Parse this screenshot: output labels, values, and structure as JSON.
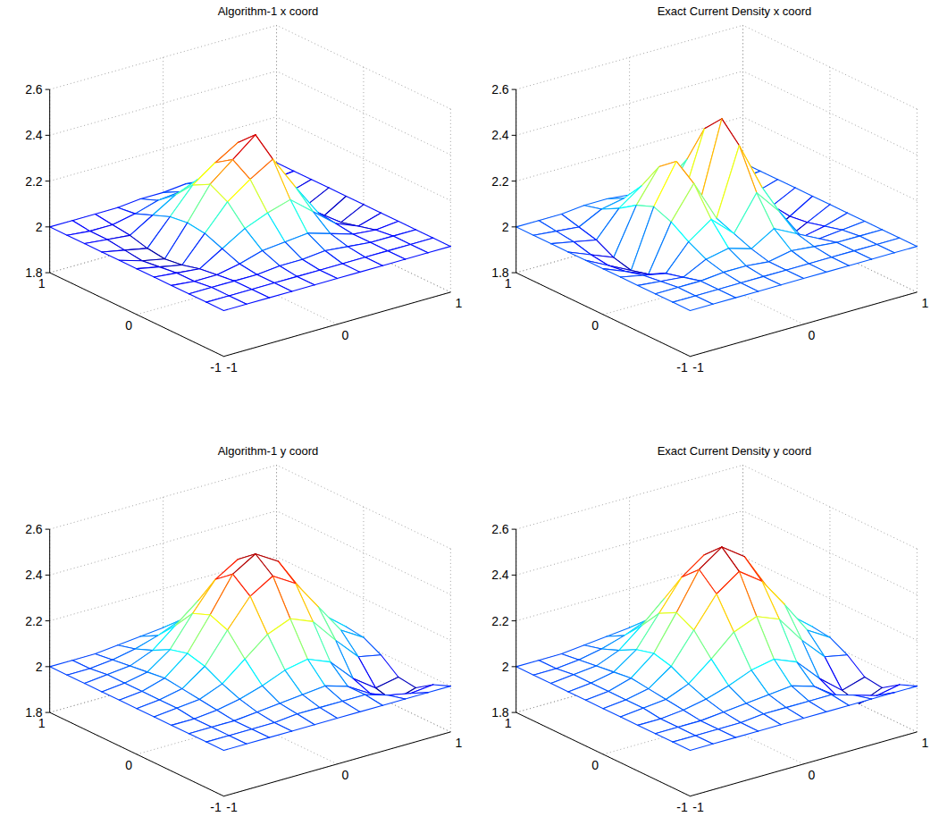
{
  "chart_data": [
    {
      "type": "surface",
      "title": "Algorithm-1 x coord",
      "x": [
        -1,
        -0.8,
        -0.6,
        -0.4,
        -0.2,
        0,
        0.2,
        0.4,
        0.6,
        0.8,
        1
      ],
      "y": [
        -1,
        -0.8,
        -0.6,
        -0.4,
        -0.2,
        0,
        0.2,
        0.4,
        0.6,
        0.8,
        1
      ],
      "z": [
        [
          2,
          2,
          2,
          2,
          2,
          2,
          2,
          2,
          2,
          2,
          2
        ],
        [
          2,
          2,
          2,
          2,
          2,
          2,
          2,
          2,
          2,
          2,
          2
        ],
        [
          2,
          2,
          2,
          2,
          2.01,
          2.01,
          2.02,
          2.01,
          2,
          2,
          2
        ],
        [
          2,
          1.99,
          1.99,
          2.01,
          2.04,
          2.05,
          2.06,
          2.03,
          2,
          1.99,
          2
        ],
        [
          2,
          1.99,
          1.98,
          2.04,
          2.1,
          2.14,
          2.17,
          2.09,
          2.01,
          1.97,
          2
        ],
        [
          2,
          1.98,
          1.96,
          2.07,
          2.18,
          2.25,
          2.31,
          2.16,
          2.02,
          1.95,
          2
        ],
        [
          2,
          1.97,
          1.95,
          2.08,
          2.22,
          2.3,
          2.38,
          2.2,
          2.02,
          1.94,
          2
        ],
        [
          2,
          1.98,
          1.96,
          2.07,
          2.18,
          2.25,
          2.31,
          2.16,
          2.02,
          1.95,
          2
        ],
        [
          2,
          1.99,
          1.98,
          2.04,
          2.1,
          2.14,
          2.17,
          2.09,
          2.01,
          1.97,
          2
        ],
        [
          2,
          1.99,
          1.99,
          2.01,
          2.04,
          2.05,
          2.06,
          2.03,
          2,
          1.99,
          2
        ],
        [
          2,
          2,
          2,
          2,
          2.01,
          2.01,
          2.02,
          2.01,
          2,
          2,
          2
        ]
      ],
      "xlim": [
        -1,
        1
      ],
      "ylim": [
        -1,
        1
      ],
      "zlim": [
        1.8,
        2.6
      ],
      "xticks": [
        -1,
        0,
        1
      ],
      "yticks": [
        -1,
        0,
        1
      ],
      "zticks": [
        1.8,
        2,
        2.2,
        2.4,
        2.6
      ],
      "grid": true
    },
    {
      "type": "surface",
      "title": "Exact Current Density x coord",
      "x": [
        -1,
        -0.8,
        -0.6,
        -0.4,
        -0.2,
        0,
        0.2,
        0.4,
        0.6,
        0.8,
        1
      ],
      "y": [
        -1,
        -0.8,
        -0.6,
        -0.4,
        -0.2,
        0,
        0.2,
        0.4,
        0.6,
        0.8,
        1
      ],
      "z": [
        [
          2,
          2,
          2,
          2,
          2,
          2,
          2,
          2,
          2,
          2,
          2
        ],
        [
          2,
          2,
          2,
          2,
          2,
          2,
          2,
          2,
          2,
          2,
          2
        ],
        [
          2,
          2,
          2,
          2.01,
          2.01,
          2,
          2.02,
          2.01,
          2,
          2,
          2
        ],
        [
          2,
          1.99,
          1.98,
          2.03,
          2.05,
          2.02,
          2.08,
          2.03,
          1.98,
          1.99,
          2
        ],
        [
          2,
          1.98,
          1.96,
          2.07,
          2.14,
          2.05,
          2.2,
          2.09,
          1.95,
          1.97,
          2
        ],
        [
          2,
          1.96,
          1.92,
          2.12,
          2.26,
          2.08,
          2.37,
          2.16,
          1.9,
          1.95,
          2
        ],
        [
          2,
          1.95,
          1.9,
          2.15,
          2.32,
          2.1,
          2.45,
          2.2,
          1.88,
          1.94,
          2
        ],
        [
          2,
          1.96,
          1.92,
          2.12,
          2.26,
          2.08,
          2.37,
          2.16,
          1.9,
          1.95,
          2
        ],
        [
          2,
          1.98,
          1.96,
          2.07,
          2.14,
          2.05,
          2.2,
          2.09,
          1.95,
          1.97,
          2
        ],
        [
          2,
          1.99,
          1.98,
          2.03,
          2.05,
          2.02,
          2.08,
          2.03,
          1.98,
          1.99,
          2
        ],
        [
          2,
          2,
          2,
          2.01,
          2.01,
          2,
          2.02,
          2.01,
          2,
          2,
          2
        ]
      ],
      "xlim": [
        -1,
        1
      ],
      "ylim": [
        -1,
        1
      ],
      "zlim": [
        1.8,
        2.6
      ],
      "xticks": [
        -1,
        0,
        1
      ],
      "yticks": [
        -1,
        0,
        1
      ],
      "zticks": [
        1.8,
        2,
        2.2,
        2.4,
        2.6
      ],
      "grid": true
    },
    {
      "type": "surface",
      "title": "Algorithm-1 y coord",
      "x": [
        -1,
        -0.8,
        -0.6,
        -0.4,
        -0.2,
        0,
        0.2,
        0.4,
        0.6,
        0.8,
        1
      ],
      "y": [
        -1,
        -0.8,
        -0.6,
        -0.4,
        -0.2,
        0,
        0.2,
        0.4,
        0.6,
        0.8,
        1
      ],
      "z": [
        [
          2,
          2,
          2,
          2,
          2,
          2,
          2,
          2,
          2,
          2,
          2
        ],
        [
          2,
          2,
          2,
          2,
          2.01,
          2.01,
          2.01,
          2.01,
          1.98,
          1.96,
          1.97
        ],
        [
          2,
          2,
          2,
          2.01,
          2.02,
          2.03,
          2.04,
          2.01,
          1.95,
          1.89,
          1.92
        ],
        [
          2,
          2,
          2.01,
          2.03,
          2.06,
          2.1,
          2.12,
          2.08,
          1.98,
          1.91,
          1.93
        ],
        [
          2,
          2.01,
          2.02,
          2.06,
          2.14,
          2.22,
          2.26,
          2.22,
          2.11,
          2.01,
          1.99
        ],
        [
          2,
          2.01,
          2.03,
          2.1,
          2.23,
          2.35,
          2.41,
          2.35,
          2.22,
          2.09,
          2.03
        ],
        [
          2,
          2.01,
          2.04,
          2.12,
          2.26,
          2.41,
          2.47,
          2.41,
          2.26,
          2.12,
          2.04
        ],
        [
          2,
          2.01,
          2.03,
          2.1,
          2.23,
          2.35,
          2.41,
          2.35,
          2.22,
          2.1,
          2.03
        ],
        [
          2,
          2.01,
          2.02,
          2.06,
          2.14,
          2.22,
          2.26,
          2.22,
          2.14,
          2.06,
          2.02
        ],
        [
          2,
          2,
          2.01,
          2.03,
          2.06,
          2.1,
          2.12,
          2.1,
          2.06,
          2.03,
          2.01
        ],
        [
          2,
          2,
          2,
          2.01,
          2.02,
          2.03,
          2.04,
          2.03,
          2.02,
          2.01,
          2
        ]
      ],
      "xlim": [
        -1,
        1
      ],
      "ylim": [
        -1,
        1
      ],
      "zlim": [
        1.8,
        2.6
      ],
      "xticks": [
        -1,
        0,
        1
      ],
      "yticks": [
        -1,
        0,
        1
      ],
      "zticks": [
        1.8,
        2,
        2.2,
        2.4,
        2.6
      ],
      "grid": true
    },
    {
      "type": "surface",
      "title": "Exact Current Density y coord",
      "x": [
        -1,
        -0.8,
        -0.6,
        -0.4,
        -0.2,
        0,
        0.2,
        0.4,
        0.6,
        0.8,
        1
      ],
      "y": [
        -1,
        -0.8,
        -0.6,
        -0.4,
        -0.2,
        0,
        0.2,
        0.4,
        0.6,
        0.8,
        1
      ],
      "z": [
        [
          2,
          2,
          2,
          2,
          2,
          2,
          2,
          2,
          2,
          2,
          2
        ],
        [
          2,
          2,
          2,
          2,
          2.01,
          2.01,
          2.01,
          2.01,
          1.98,
          1.95,
          1.97
        ],
        [
          2,
          2,
          2,
          2.01,
          2.02,
          2.03,
          2.04,
          2.01,
          1.94,
          1.88,
          1.92
        ],
        [
          2,
          2,
          2.01,
          2.03,
          2.06,
          2.1,
          2.12,
          2.08,
          1.98,
          1.9,
          1.93
        ],
        [
          2,
          2.01,
          2.02,
          2.06,
          2.14,
          2.23,
          2.27,
          2.23,
          2.11,
          2.01,
          1.99
        ],
        [
          2,
          2.01,
          2.03,
          2.1,
          2.23,
          2.36,
          2.43,
          2.36,
          2.23,
          2.09,
          2.03
        ],
        [
          2,
          2.01,
          2.04,
          2.12,
          2.27,
          2.43,
          2.5,
          2.43,
          2.27,
          2.12,
          2.04
        ],
        [
          2,
          2.01,
          2.03,
          2.1,
          2.23,
          2.36,
          2.43,
          2.36,
          2.23,
          2.1,
          2.03
        ],
        [
          2,
          2.01,
          2.02,
          2.06,
          2.14,
          2.23,
          2.27,
          2.23,
          2.14,
          2.06,
          2.02
        ],
        [
          2,
          2,
          2.01,
          2.03,
          2.06,
          2.1,
          2.12,
          2.1,
          2.06,
          2.03,
          2.01
        ],
        [
          2,
          2,
          2,
          2.01,
          2.02,
          2.03,
          2.04,
          2.03,
          2.02,
          2.01,
          2
        ]
      ],
      "xlim": [
        -1,
        1
      ],
      "ylim": [
        -1,
        1
      ],
      "zlim": [
        1.8,
        2.6
      ],
      "xticks": [
        -1,
        0,
        1
      ],
      "yticks": [
        -1,
        0,
        1
      ],
      "zticks": [
        1.8,
        2,
        2.2,
        2.4,
        2.6
      ],
      "grid": true
    }
  ]
}
